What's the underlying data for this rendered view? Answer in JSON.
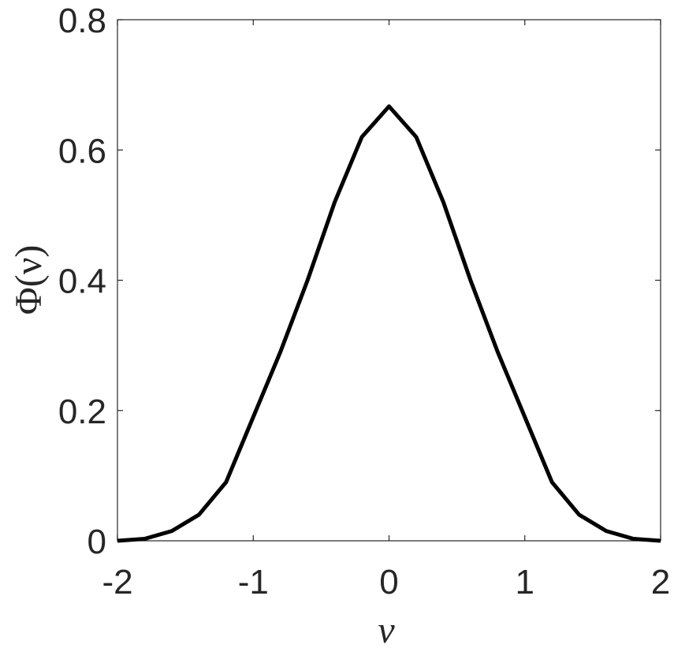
{
  "chart_data": {
    "type": "line",
    "xlabel": "ν",
    "ylabel": "Φ(ν)",
    "x": [
      -2,
      -1.8,
      -1.6,
      -1.4,
      -1.2,
      -1,
      -0.8,
      -0.6,
      -0.4,
      -0.2,
      0,
      0.2,
      0.4,
      0.6,
      0.8,
      1,
      1.2,
      1.4,
      1.6,
      1.8,
      2
    ],
    "series": [
      {
        "color": "#000000",
        "values": [
          0,
          0.003,
          0.015,
          0.04,
          0.09,
          0.19,
          0.29,
          0.4,
          0.52,
          0.62,
          0.667,
          0.62,
          0.52,
          0.4,
          0.29,
          0.19,
          0.09,
          0.04,
          0.015,
          0.003,
          0
        ]
      }
    ],
    "xlim": [
      -2,
      2
    ],
    "xticks": [
      -2,
      -1,
      0,
      1,
      2
    ],
    "ylim": [
      0,
      0.8
    ],
    "yticks": [
      0,
      0.2,
      0.4,
      0.6,
      0.8
    ]
  }
}
